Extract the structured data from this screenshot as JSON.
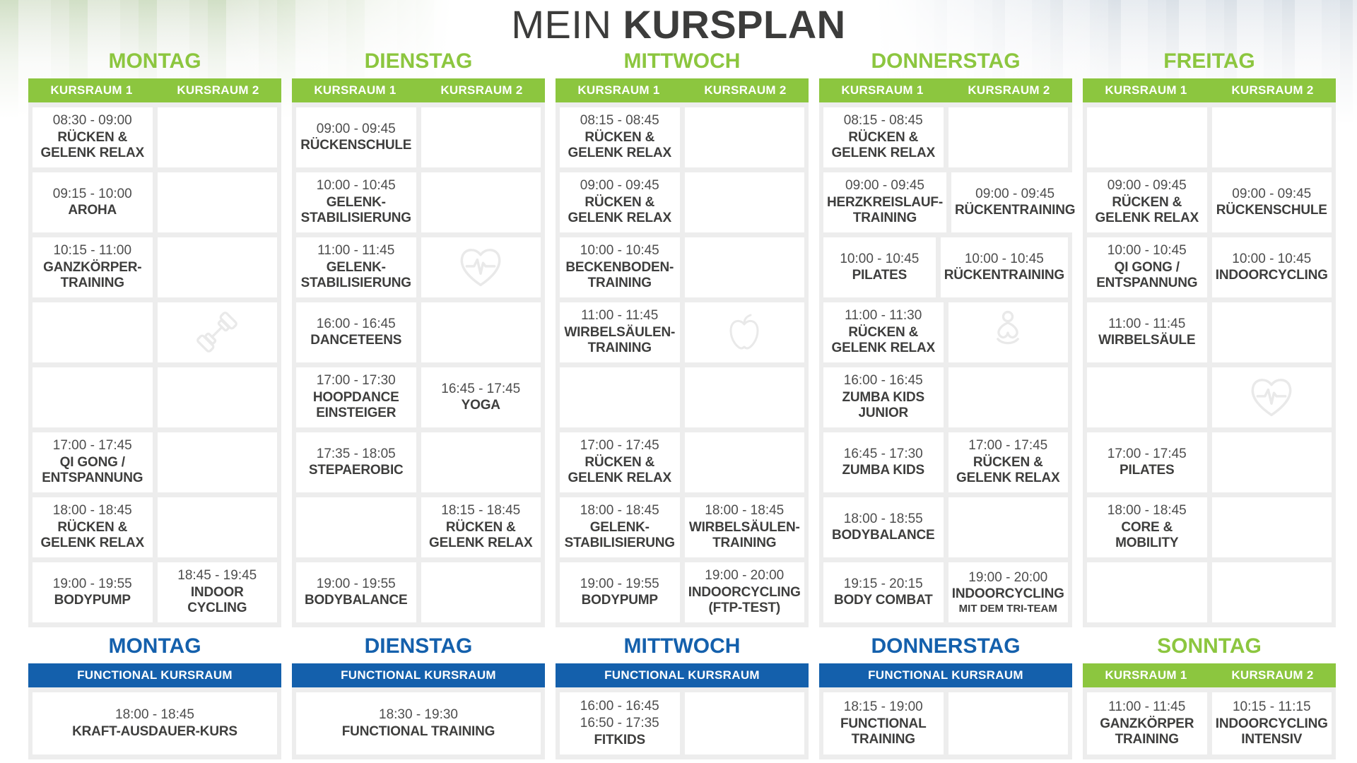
{
  "title": {
    "prefix": "MEIN",
    "main": "KURSPLAN"
  },
  "labels": {
    "room1": "KURSRAUM 1",
    "room2": "KURSRAUM 2",
    "functional": "FUNCTIONAL KURSRAUM"
  },
  "colors": {
    "green": "#8CC63F",
    "blue": "#1460AC",
    "text_dark": "#3E3E3D",
    "time_text": "#4D4D4D",
    "cell_bg": "#FFFFFF",
    "block_bg": "#EDEDED",
    "icon_gray": "#E9E9E9"
  },
  "icons": {
    "dumbbell": "dumbbell-icon",
    "heart": "heart-pulse-icon",
    "apple": "apple-icon",
    "meditation": "meditation-icon"
  },
  "schedule": {
    "days": [
      {
        "name": "MONTAG",
        "room1": [
          {
            "time": "08:30 - 09:00",
            "name": "RÜCKEN & GELENK RELAX"
          },
          {
            "time": "09:15 - 10:00",
            "name": "AROHA"
          },
          {
            "time": "10:15 - 11:00",
            "name": "GANZKÖRPER-TRAINING"
          },
          null,
          null,
          {
            "time": "17:00 - 17:45",
            "name": "QI GONG / ENTSPANNUNG"
          },
          {
            "time": "18:00 - 18:45",
            "name": "RÜCKEN & GELENK RELAX"
          },
          {
            "time": "19:00 - 19:55",
            "name": "BODYPUMP"
          }
        ],
        "room2": [
          null,
          null,
          null,
          {
            "icon": "dumbbell"
          },
          null,
          null,
          null,
          {
            "time": "18:45 - 19:45",
            "name": "INDOOR CYCLING"
          }
        ]
      },
      {
        "name": "DIENSTAG",
        "room1": [
          {
            "time": "09:00 - 09:45",
            "name": "RÜCKENSCHULE"
          },
          {
            "time": "10:00 - 10:45",
            "name": "GELENK-STABILISIERUNG"
          },
          {
            "time": "11:00 - 11:45",
            "name": "GELENK-STABILISIERUNG"
          },
          {
            "time": "16:00 - 16:45",
            "name": "DANCETEENS"
          },
          {
            "time": "17:00 - 17:30",
            "name": "HOOPDANCE EINSTEIGER"
          },
          {
            "time": "17:35 - 18:05",
            "name": "STEPAEROBIC"
          },
          null,
          {
            "time": "19:00 - 19:55",
            "name": "BODYBALANCE"
          }
        ],
        "room2": [
          null,
          null,
          {
            "icon": "heart"
          },
          null,
          {
            "time": "16:45 - 17:45",
            "name": "YOGA"
          },
          null,
          {
            "time": "18:15 - 18:45",
            "name": "RÜCKEN & GELENK RELAX"
          },
          null
        ]
      },
      {
        "name": "MITTWOCH",
        "room1": [
          {
            "time": "08:15 - 08:45",
            "name": "RÜCKEN & GELENK RELAX"
          },
          {
            "time": "09:00 - 09:45",
            "name": "RÜCKEN & GELENK RELAX"
          },
          {
            "time": "10:00 - 10:45",
            "name": "BECKENBODEN-TRAINING"
          },
          {
            "time": "11:00 - 11:45",
            "name": "WIRBELSÄULEN-TRAINING"
          },
          null,
          {
            "time": "17:00 - 17:45",
            "name": "RÜCKEN & GELENK RELAX"
          },
          {
            "time": "18:00 - 18:45",
            "name": "GELENK-STABILISIERUNG"
          },
          {
            "time": "19:00 - 19:55",
            "name": "BODYPUMP"
          }
        ],
        "room2": [
          null,
          null,
          null,
          {
            "icon": "apple"
          },
          null,
          null,
          {
            "time": "18:00 - 18:45",
            "name": "WIRBELSÄULEN-TRAINING"
          },
          {
            "time": "19:00 - 20:00",
            "name": "INDOORCYCLING (FTP-TEST)"
          }
        ]
      },
      {
        "name": "DONNERSTAG",
        "room1": [
          {
            "time": "08:15 - 08:45",
            "name": "RÜCKEN & GELENK RELAX"
          },
          {
            "time": "09:00 - 09:45",
            "name": "HERZKREISLAUF-TRAINING"
          },
          {
            "time": "10:00 - 10:45",
            "name": "PILATES"
          },
          {
            "time": "11:00 - 11:30",
            "name": "RÜCKEN & GELENK RELAX"
          },
          {
            "time": "16:00 - 16:45",
            "name": "ZUMBA KIDS JUNIOR"
          },
          {
            "time": "16:45 - 17:30",
            "name": "ZUMBA KIDS"
          },
          {
            "time": "18:00 - 18:55",
            "name": "BODYBALANCE"
          },
          {
            "time": "19:15 - 20:15",
            "name": "BODY COMBAT"
          }
        ],
        "room2": [
          null,
          {
            "time": "09:00 - 09:45",
            "name": "RÜCKENTRAINING"
          },
          {
            "time": "10:00 - 10:45",
            "name": "RÜCKENTRAINING"
          },
          {
            "icon": "meditation"
          },
          null,
          {
            "time": "17:00 - 17:45",
            "name": "RÜCKEN & GELENK RELAX"
          },
          null,
          {
            "time": "19:00 - 20:00",
            "name": "INDOORCYCLING",
            "sub": "MIT DEM TRI-TEAM"
          }
        ]
      },
      {
        "name": "FREITAG",
        "room1": [
          null,
          {
            "time": "09:00 - 09:45",
            "name": "RÜCKEN & GELENK RELAX"
          },
          {
            "time": "10:00 - 10:45",
            "name": "QI GONG / ENTSPANNUNG"
          },
          {
            "time": "11:00 - 11:45",
            "name": "WIRBELSÄULE"
          },
          null,
          {
            "time": "17:00 - 17:45",
            "name": "PILATES"
          },
          {
            "time": "18:00 - 18:45",
            "name": "CORE & MOBILITY"
          },
          null
        ],
        "room2": [
          null,
          {
            "time": "09:00 - 09:45",
            "name": "RÜCKENSCHULE"
          },
          {
            "time": "10:00 - 10:45",
            "name": "INDOORCYCLING"
          },
          null,
          {
            "icon": "heart"
          },
          null,
          null,
          null
        ]
      }
    ]
  },
  "bottom": {
    "days": [
      {
        "name": "MONTAG",
        "accent": "blue",
        "type": "functional",
        "cells": [
          {
            "times": [
              "18:00 - 18:45"
            ],
            "name": "KRAFT-AUSDAUER-KURS"
          }
        ]
      },
      {
        "name": "DIENSTAG",
        "accent": "blue",
        "type": "functional",
        "cells": [
          {
            "times": [
              "18:30 - 19:30"
            ],
            "name": "FUNCTIONAL TRAINING"
          }
        ]
      },
      {
        "name": "MITTWOCH",
        "accent": "blue",
        "type": "functional",
        "cells": [
          {
            "times": [
              "16:00 - 16:45",
              "16:50 - 17:35"
            ],
            "name": "FITKIDS"
          },
          null
        ]
      },
      {
        "name": "DONNERSTAG",
        "accent": "blue",
        "type": "functional",
        "cells": [
          {
            "times": [
              "18:15 - 19:00"
            ],
            "name": "FUNCTIONAL TRAINING"
          },
          null
        ]
      },
      {
        "name": "SONNTAG",
        "accent": "green",
        "type": "rooms",
        "cells": [
          {
            "times": [
              "11:00 - 11:45"
            ],
            "name": "GANZKÖRPER TRAINING"
          },
          {
            "times": [
              "10:15 - 11:15"
            ],
            "name": "INDOORCYCLING INTENSIV"
          }
        ]
      }
    ]
  }
}
